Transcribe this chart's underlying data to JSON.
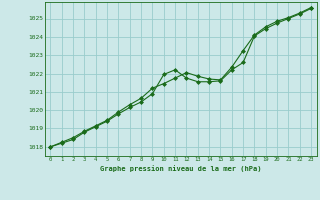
{
  "title": "Graphe pression niveau de la mer (hPa)",
  "background_color": "#cce8e8",
  "plot_bg_color": "#cce8e8",
  "grid_color": "#99cccc",
  "line_color": "#1a6b1a",
  "xlim": [
    -0.5,
    23.5
  ],
  "ylim": [
    1017.5,
    1025.9
  ],
  "xticks": [
    0,
    1,
    2,
    3,
    4,
    5,
    6,
    7,
    8,
    9,
    10,
    11,
    12,
    13,
    14,
    15,
    16,
    17,
    18,
    19,
    20,
    21,
    22,
    23
  ],
  "yticks": [
    1018,
    1019,
    1020,
    1021,
    1022,
    1023,
    1024,
    1025
  ],
  "series1_x": [
    0,
    1,
    2,
    3,
    4,
    5,
    6,
    7,
    8,
    9,
    10,
    11,
    12,
    13,
    14,
    15,
    16,
    17,
    18,
    19,
    20,
    21,
    22,
    23
  ],
  "series1_y": [
    1018.0,
    1018.2,
    1018.4,
    1018.8,
    1019.1,
    1019.4,
    1019.8,
    1020.15,
    1020.45,
    1020.9,
    1021.95,
    1022.2,
    1021.75,
    1021.55,
    1021.55,
    1021.6,
    1022.2,
    1022.6,
    1024.05,
    1024.45,
    1024.75,
    1025.0,
    1025.25,
    1025.55
  ],
  "series2_x": [
    0,
    1,
    2,
    3,
    4,
    5,
    6,
    7,
    8,
    9,
    10,
    11,
    12,
    13,
    14,
    15,
    16,
    17,
    18,
    19,
    20,
    21,
    22,
    23
  ],
  "series2_y": [
    1018.0,
    1018.25,
    1018.5,
    1018.85,
    1019.15,
    1019.45,
    1019.9,
    1020.3,
    1020.65,
    1021.2,
    1021.45,
    1021.75,
    1022.05,
    1021.85,
    1021.7,
    1021.65,
    1022.35,
    1023.25,
    1024.1,
    1024.55,
    1024.85,
    1025.05,
    1025.3,
    1025.6
  ]
}
